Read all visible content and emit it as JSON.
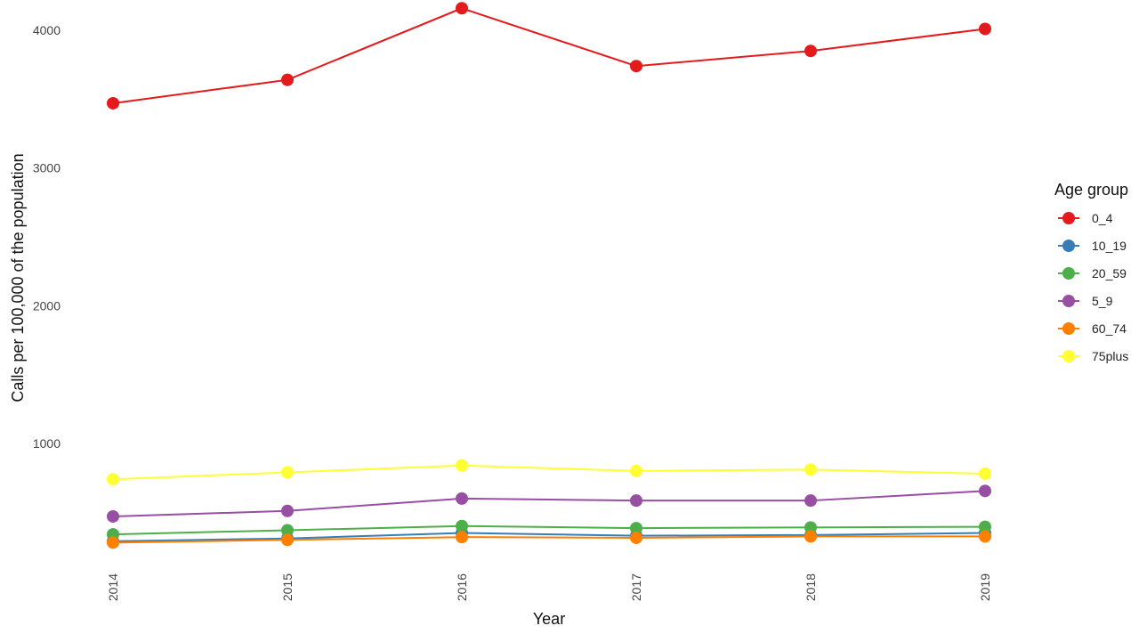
{
  "chart_data": {
    "type": "line",
    "x": [
      "2014",
      "2015",
      "2016",
      "2017",
      "2018",
      "2019"
    ],
    "xlabel": "Year",
    "ylabel": "Calls per 100,000 of the population",
    "ylim": [
      -80,
      4200
    ],
    "yticks": [
      1000,
      2000,
      3000,
      4000
    ],
    "grid": false,
    "legend": {
      "title": "Age group",
      "position": "right"
    },
    "series": [
      {
        "name": "0_4",
        "color": "#e41a1c",
        "values": [
          3470,
          3640,
          4160,
          3740,
          3850,
          4010
        ]
      },
      {
        "name": "10_19",
        "color": "#377eb8",
        "values": [
          290,
          310,
          350,
          330,
          335,
          350
        ]
      },
      {
        "name": "20_59",
        "color": "#4daf4a",
        "values": [
          340,
          370,
          400,
          385,
          390,
          395
        ]
      },
      {
        "name": "5_9",
        "color": "#984ea3",
        "values": [
          470,
          510,
          600,
          585,
          585,
          655
        ]
      },
      {
        "name": "60_74",
        "color": "#ff7f00",
        "values": [
          280,
          300,
          320,
          315,
          325,
          325
        ]
      },
      {
        "name": "75plus",
        "color": "#ffff33",
        "values": [
          740,
          790,
          840,
          800,
          810,
          780
        ]
      }
    ]
  }
}
